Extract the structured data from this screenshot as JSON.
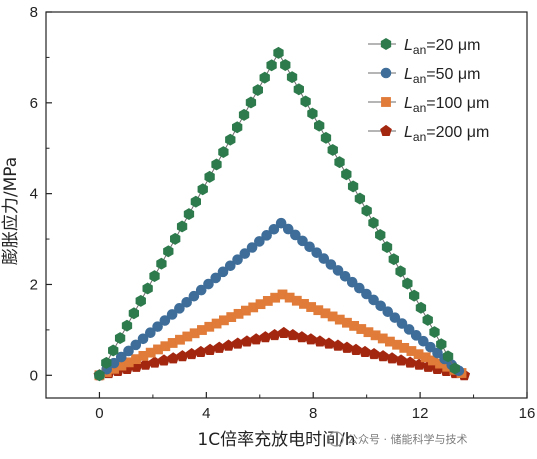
{
  "chart_data": {
    "type": "scatter",
    "xlabel": "1C倍率充放电时间/h",
    "ylabel": "膨胀应力/MPa",
    "xlim": [
      -2,
      16
    ],
    "ylim": [
      -0.5,
      8
    ],
    "xticks": [
      "0",
      "4",
      "8",
      "12",
      "16"
    ],
    "yticks": [
      "0",
      "2",
      "4",
      "6",
      "8"
    ],
    "grid": false,
    "legend_position": "top-right",
    "series": [
      {
        "name": "L_an=20 μm",
        "label_symbol": "L",
        "label_sub": "an",
        "label_rest": "=20 μm",
        "marker": "hexagon",
        "color": "#2d7a4c",
        "x_start": 0,
        "x_peak": 6.7,
        "x_end": 13.3,
        "y_start": 0.0,
        "y_peak": 7.1,
        "y_end": 0.15,
        "n_rise": 26,
        "n_fall": 26
      },
      {
        "name": "L_an=50 μm",
        "label_symbol": "L",
        "label_sub": "an",
        "label_rest": "=50 μm",
        "marker": "circle",
        "color": "#3e6d99",
        "x_start": 0,
        "x_peak": 6.8,
        "x_end": 13.45,
        "y_start": 0.0,
        "y_peak": 3.35,
        "y_end": 0.1,
        "n_rise": 25,
        "n_fall": 25
      },
      {
        "name": "L_an=100 μm",
        "label_symbol": "L",
        "label_sub": "an",
        "label_rest": "=100 μm",
        "marker": "square",
        "color": "#e07b39",
        "x_start": 0,
        "x_peak": 6.85,
        "x_end": 13.55,
        "y_start": 0.0,
        "y_peak": 1.78,
        "y_end": 0.05,
        "n_rise": 25,
        "n_fall": 25
      },
      {
        "name": "L_an=200 μm",
        "label_symbol": "L",
        "label_sub": "an",
        "label_rest": "=200 μm",
        "marker": "pentagon",
        "color": "#a3260f",
        "x_start": 0,
        "x_peak": 6.9,
        "x_end": 13.65,
        "y_start": 0.0,
        "y_peak": 0.93,
        "y_end": 0.0,
        "n_rise": 20,
        "n_fall": 20
      }
    ]
  },
  "watermark": {
    "text": "公众号 · 储能科学与技术"
  }
}
